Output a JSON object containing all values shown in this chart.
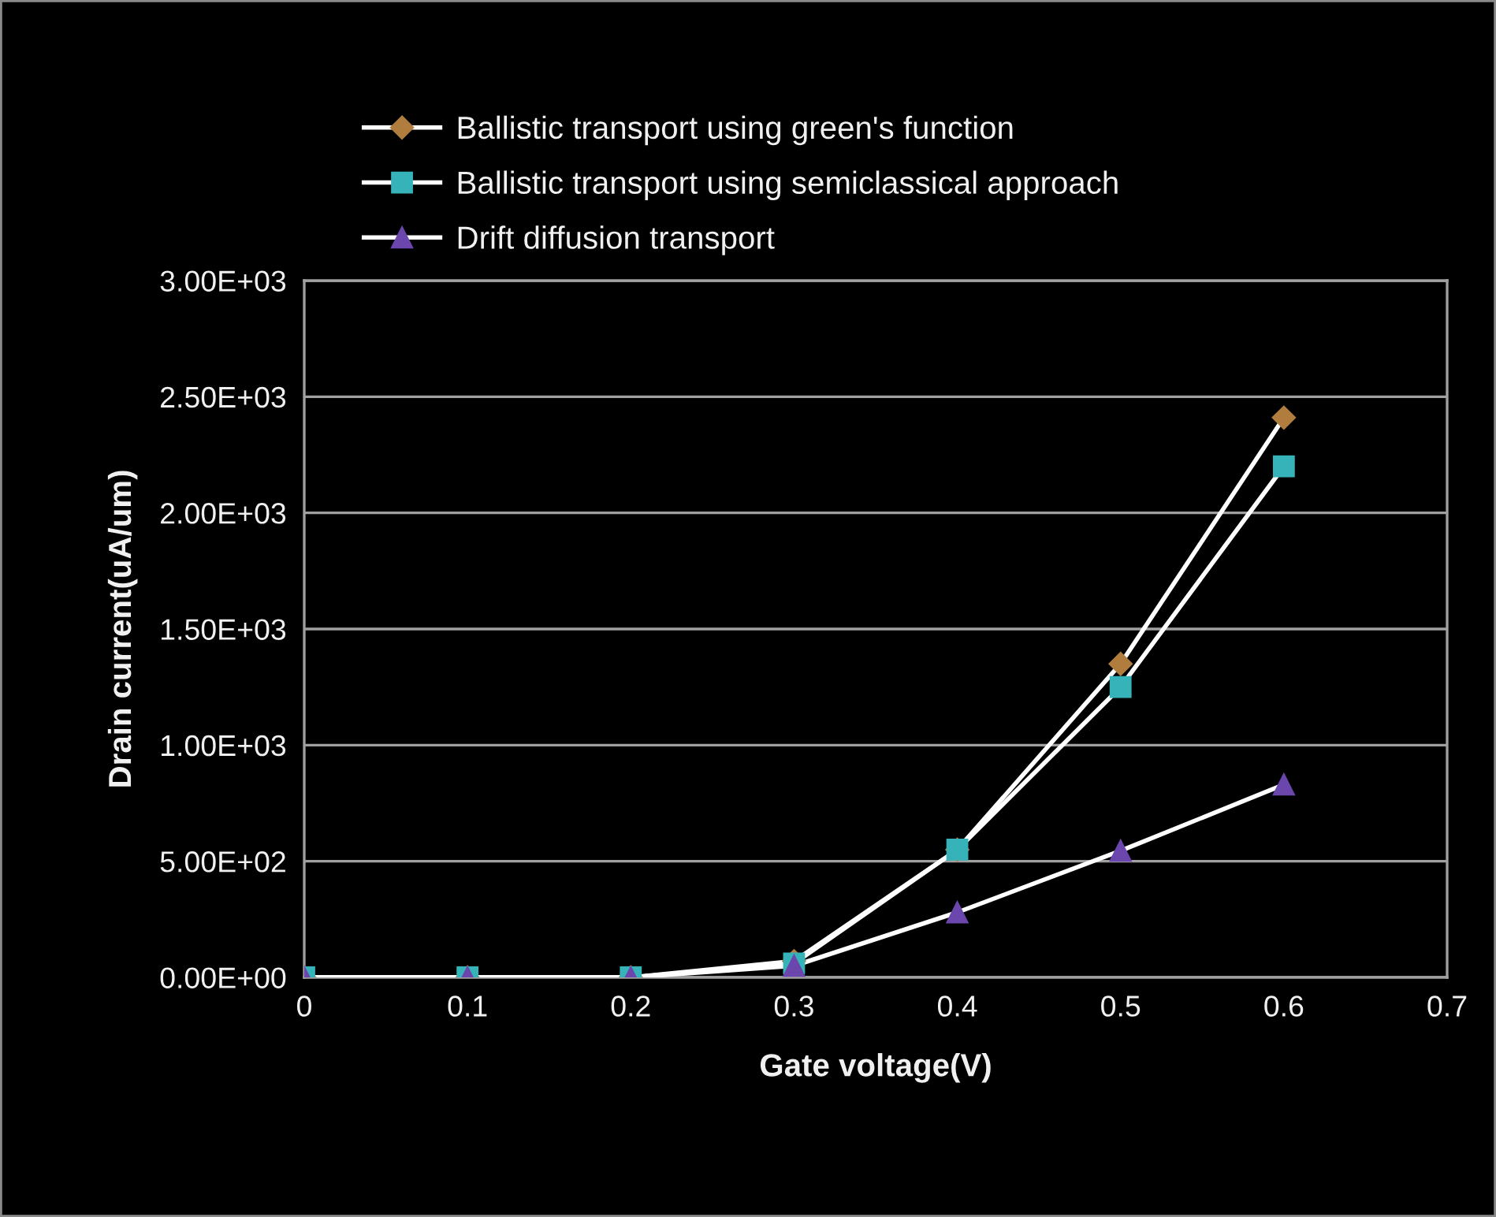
{
  "chart_data": {
    "type": "line",
    "xlabel": "Gate voltage(V)",
    "ylabel": "Drain current(uA/um)",
    "x": [
      0,
      0.1,
      0.2,
      0.3,
      0.4,
      0.5,
      0.6
    ],
    "series": [
      {
        "name": "Ballistic transport using green's function",
        "color": "#ffffff",
        "colors": [
          "#b07d3e",
          "#b07d3e",
          "#b07d3e",
          "#b07d3e",
          "#b07d3e",
          "#b07d3e",
          "#b07d3e"
        ],
        "marker": "diamond",
        "values": [
          0,
          0,
          0,
          70,
          550,
          1350,
          2410
        ]
      },
      {
        "name": "Ballistic transport using semiclassical approach",
        "color": "#ffffff",
        "colors": [
          "#36b3b8",
          "#36b3b8",
          "#36b3b8",
          "#36b3b8",
          "#36b3b8",
          "#36b3b8",
          "#36b3b8"
        ],
        "marker": "square",
        "values": [
          0,
          0,
          0,
          60,
          550,
          1250,
          2200
        ]
      },
      {
        "name": "Drift diffusion transport",
        "color": "#ffffff",
        "colors": [
          "#6a46ad",
          "#6a46ad",
          "#6a46ad",
          "#6a46ad",
          "#6a46ad",
          "#6a46ad",
          "#6a46ad"
        ],
        "marker": "triangle",
        "values": [
          0,
          0,
          0,
          50,
          280,
          545,
          830
        ]
      }
    ],
    "xlim": [
      0,
      0.7
    ],
    "xticks": [
      0,
      0.1,
      0.2,
      0.3,
      0.4,
      0.5,
      0.6,
      0.7
    ],
    "ylim": [
      0,
      3000
    ],
    "yticks": [
      {
        "value": 0,
        "label": "0.00E+00"
      },
      {
        "value": 500,
        "label": "5.00E+02"
      },
      {
        "value": 1000,
        "label": "1.00E+03"
      },
      {
        "value": 1500,
        "label": "1.50E+03"
      },
      {
        "value": 2000,
        "label": "2.00E+03"
      },
      {
        "value": 2500,
        "label": "2.50E+03"
      },
      {
        "value": 3000,
        "label": "3.00E+03"
      }
    ],
    "grid": "y",
    "legend": "top",
    "line_style": "solid"
  }
}
